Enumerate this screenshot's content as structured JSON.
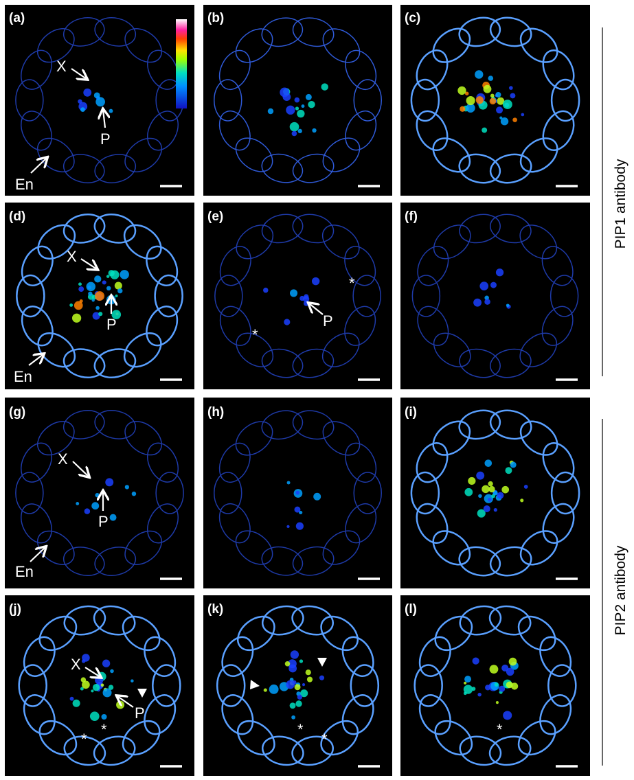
{
  "panels": [
    {
      "label": "(a)",
      "annotations": [
        "X",
        "P",
        "En"
      ]
    },
    {
      "label": "(b)",
      "annotations": []
    },
    {
      "label": "(c)",
      "annotations": []
    },
    {
      "label": "(d)",
      "annotations": [
        "X",
        "P",
        "En"
      ]
    },
    {
      "label": "(e)",
      "annotations": [
        "*",
        "*",
        "P"
      ]
    },
    {
      "label": "(f)",
      "annotations": []
    },
    {
      "label": "(g)",
      "annotations": [
        "X",
        "P",
        "En"
      ]
    },
    {
      "label": "(h)",
      "annotations": []
    },
    {
      "label": "(i)",
      "annotations": []
    },
    {
      "label": "(j)",
      "annotations": [
        "X",
        "P",
        "*",
        "*"
      ]
    },
    {
      "label": "(k)",
      "annotations": [
        "*",
        "*"
      ]
    },
    {
      "label": "(l)",
      "annotations": [
        "*"
      ]
    }
  ],
  "side_labels": [
    "PIP1 antibody",
    "PIP2 antibody"
  ]
}
